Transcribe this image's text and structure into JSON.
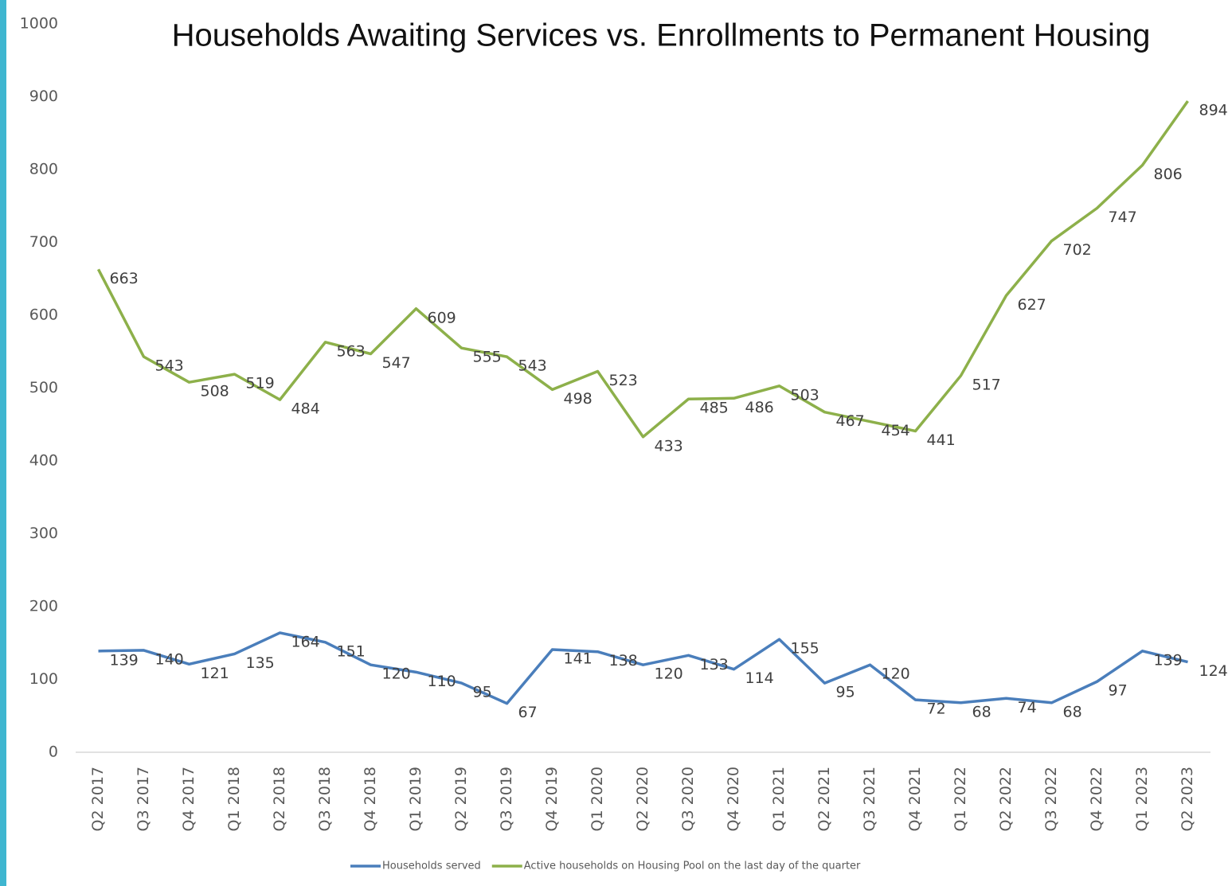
{
  "chart_data": {
    "type": "line",
    "title": "Households Awaiting Services vs. Enrollments to Permanent Housing",
    "categories": [
      "Q2 2017",
      "Q3 2017",
      "Q4 2017",
      "Q1 2018",
      "Q2 2018",
      "Q3 2018",
      "Q4 2018",
      "Q1 2019",
      "Q2 2019",
      "Q3 2019",
      "Q4 2019",
      "Q1 2020",
      "Q2 2020",
      "Q3 2020",
      "Q4 2020",
      "Q1 2021",
      "Q2 2021",
      "Q3 2021",
      "Q4 2021",
      "Q1 2022",
      "Q2 2022",
      "Q3 2022",
      "Q4 2022",
      "Q1 2023",
      "Q2 2023"
    ],
    "series": [
      {
        "name": "Households served",
        "color": "#4a7ebb",
        "values": [
          139,
          140,
          121,
          135,
          164,
          151,
          120,
          110,
          95,
          67,
          141,
          138,
          120,
          133,
          114,
          155,
          95,
          120,
          72,
          68,
          74,
          68,
          97,
          139,
          124
        ]
      },
      {
        "name": "Active households on Housing Pool on the last day of the quarter",
        "color": "#8db04a",
        "values": [
          663,
          543,
          508,
          519,
          484,
          563,
          547,
          609,
          555,
          543,
          498,
          523,
          433,
          485,
          486,
          503,
          467,
          454,
          441,
          517,
          627,
          702,
          747,
          806,
          894
        ]
      }
    ],
    "ylim": [
      0,
      1000
    ],
    "yticks": [
      0,
      100,
      200,
      300,
      400,
      500,
      600,
      700,
      800,
      900,
      1000
    ],
    "grid": false,
    "legend": "bottom"
  }
}
